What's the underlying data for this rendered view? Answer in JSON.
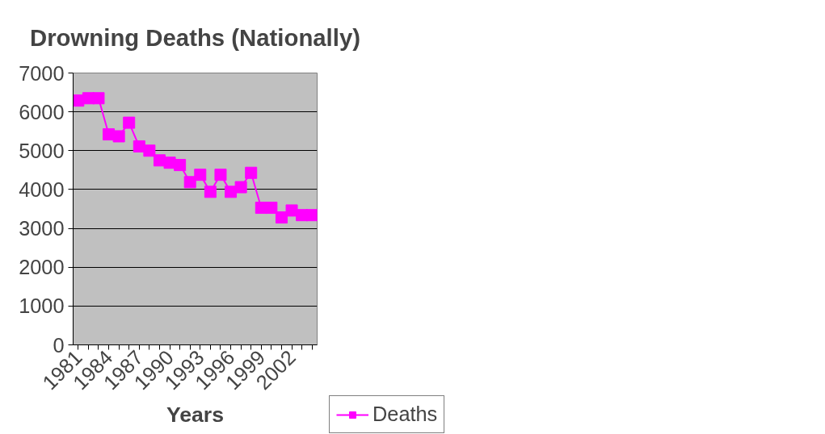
{
  "chart_data": {
    "type": "line",
    "title": "Drowning Deaths (Nationally)",
    "xlabel": "Years",
    "categories": [
      "1981",
      null,
      null,
      "1984",
      null,
      null,
      "1987",
      null,
      null,
      "1990",
      null,
      null,
      "1993",
      null,
      null,
      "1996",
      null,
      null,
      "1999",
      null,
      null,
      "2002",
      null,
      null
    ],
    "series": [
      {
        "name": "Deaths",
        "color": "#ff00ff",
        "values": [
          6290,
          6350,
          6350,
          5420,
          5370,
          5720,
          5110,
          5000,
          4750,
          4690,
          4630,
          4190,
          4380,
          3940,
          4380,
          3940,
          4060,
          4430,
          3530,
          3530,
          3280,
          3460,
          3340,
          3340
        ]
      }
    ],
    "ylim": [
      0,
      7000
    ],
    "yticks": [
      0,
      1000,
      2000,
      3000,
      4000,
      5000,
      6000,
      7000
    ],
    "grid": "y",
    "legend": "right",
    "marker": "square",
    "line_style": "solid"
  }
}
